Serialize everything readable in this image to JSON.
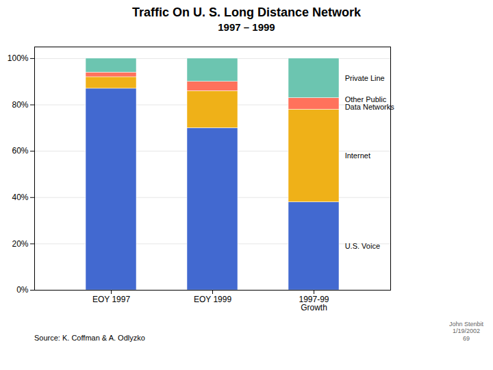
{
  "chart_data": {
    "type": "bar",
    "stacked": true,
    "title": "Traffic On U. S. Long Distance Network",
    "subtitle": "1997 – 1999",
    "categories": [
      "EOY 1997",
      "EOY 1999",
      "1997-99\nGrowth"
    ],
    "series": [
      {
        "name": "U.S. Voice",
        "values": [
          87,
          70,
          38
        ]
      },
      {
        "name": "Internet",
        "values": [
          5,
          16,
          40
        ]
      },
      {
        "name": "Other Public\nData Networks",
        "values": [
          2,
          4,
          5
        ]
      },
      {
        "name": "Private Line",
        "values": [
          6,
          10,
          17
        ]
      }
    ],
    "ylim": [
      0,
      105
    ],
    "yticks": [
      {
        "value": 0,
        "label": "0%"
      },
      {
        "value": 20,
        "label": "20%"
      },
      {
        "value": 40,
        "label": "40%"
      },
      {
        "value": 60,
        "label": "60%"
      },
      {
        "value": 80,
        "label": "80%"
      },
      {
        "value": 100,
        "label": "100%"
      }
    ],
    "grid": true,
    "legend": "right",
    "annotations": [
      "Source: K. Coffman & A. Odlyzko",
      "John Stenbit",
      "1/19/2002",
      "69"
    ]
  }
}
